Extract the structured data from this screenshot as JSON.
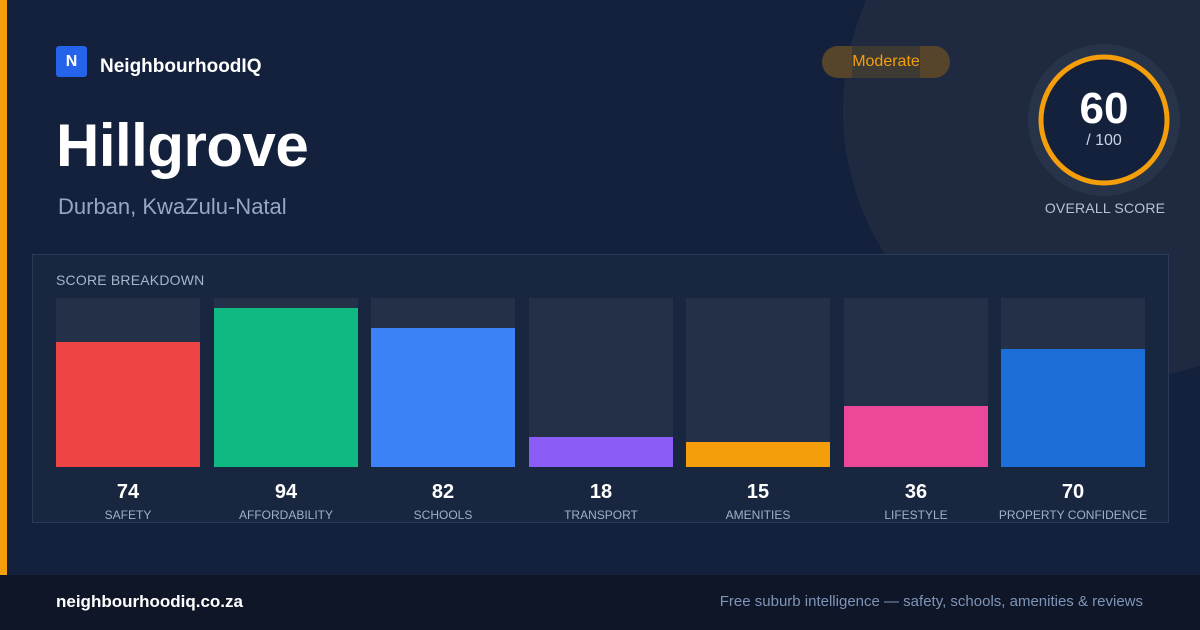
{
  "brand": {
    "logo_letter": "N",
    "name": "NeighbourhoodIQ"
  },
  "header": {
    "title": "Hillgrove",
    "location": "Durban, KwaZulu-Natal",
    "badge": "Moderate"
  },
  "overall": {
    "value": "60",
    "max": "/ 100",
    "label": "OVERALL SCORE",
    "score": 60,
    "color": "#f59e0b"
  },
  "breakdown_title": "SCORE BREAKDOWN",
  "chart_data": {
    "type": "bar",
    "title": "SCORE BREAKDOWN",
    "ylim": [
      0,
      100
    ],
    "categories": [
      "SAFETY",
      "AFFORDABILITY",
      "SCHOOLS",
      "TRANSPORT",
      "AMENITIES",
      "LIFESTYLE",
      "PROPERTY CONFIDENCE"
    ],
    "values": [
      74,
      94,
      82,
      18,
      15,
      36,
      70
    ],
    "value_labels": [
      "74",
      "94",
      "82",
      "18",
      "15",
      "36",
      "70"
    ],
    "colors": [
      "#ef4444",
      "#10b981",
      "#3b82f6",
      "#8b5cf6",
      "#f59e0b",
      "#ec4899",
      "#1d6fd8"
    ],
    "grid": false
  },
  "footer": {
    "url": "neighbourhoodiq.co.za",
    "tagline": "Free suburb intelligence — safety, schools, amenities & reviews"
  }
}
